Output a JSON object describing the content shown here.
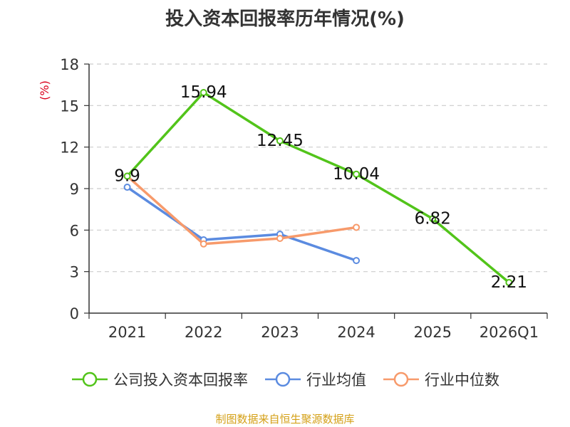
{
  "chart_data": {
    "type": "line",
    "title": "投入资本回报率历年情况(%)",
    "ylabel": "(%)",
    "xlabel": "",
    "categories": [
      "2021",
      "2022",
      "2023",
      "2024",
      "2025",
      "2026Q1"
    ],
    "ylim": [
      0,
      18
    ],
    "yticks": [
      0,
      3,
      6,
      9,
      12,
      15,
      18
    ],
    "grid": true,
    "legend_position": "bottom",
    "series": [
      {
        "name": "公司投入资本回报率",
        "color": "#52c41a",
        "values": [
          9.9,
          15.94,
          12.45,
          10.04,
          6.82,
          2.21
        ],
        "labels": [
          "9.9",
          "15.94",
          "12.45",
          "10.04",
          "6.82",
          "2.21"
        ]
      },
      {
        "name": "行业均值",
        "color": "#5b8be0",
        "values": [
          9.1,
          5.3,
          5.7,
          3.8,
          null,
          null
        ]
      },
      {
        "name": "行业中位数",
        "color": "#f79a6b",
        "values": [
          9.9,
          5.0,
          5.4,
          6.2,
          null,
          null
        ]
      }
    ],
    "source": "制图数据来自恒生聚源数据库"
  }
}
